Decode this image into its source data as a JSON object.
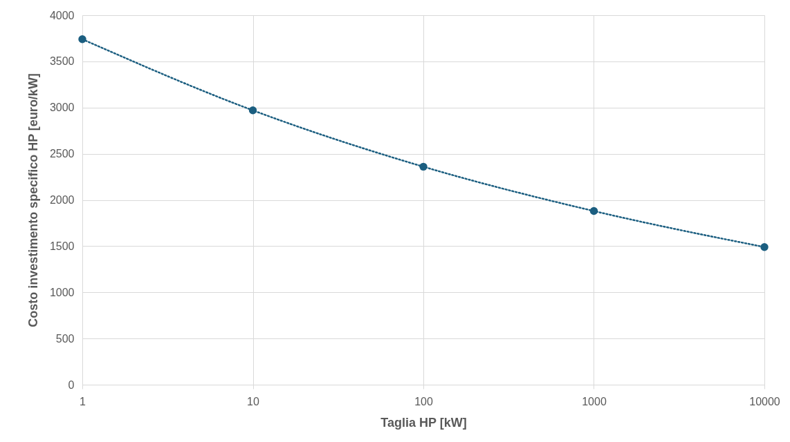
{
  "chart_data": {
    "type": "line",
    "xlabel": "Taglia HP [kW]",
    "ylabel": "Costo investimento specifico HP  [euro/kW]",
    "x": [
      1,
      10,
      100,
      1000,
      10000
    ],
    "series": [
      {
        "color": "#1b5e80",
        "values": [
          3740,
          2970,
          2360,
          1880,
          1490
        ]
      }
    ],
    "log": "x",
    "xlim": [
      1,
      10000
    ],
    "xticks": [
      1,
      10,
      100,
      1000,
      10000
    ],
    "ylim": [
      0,
      4000
    ],
    "yticks": [
      0,
      500,
      1000,
      1500,
      2000,
      2500,
      3000,
      3500,
      4000
    ],
    "grid": true,
    "marker": "circle",
    "line_style": "dotted"
  }
}
